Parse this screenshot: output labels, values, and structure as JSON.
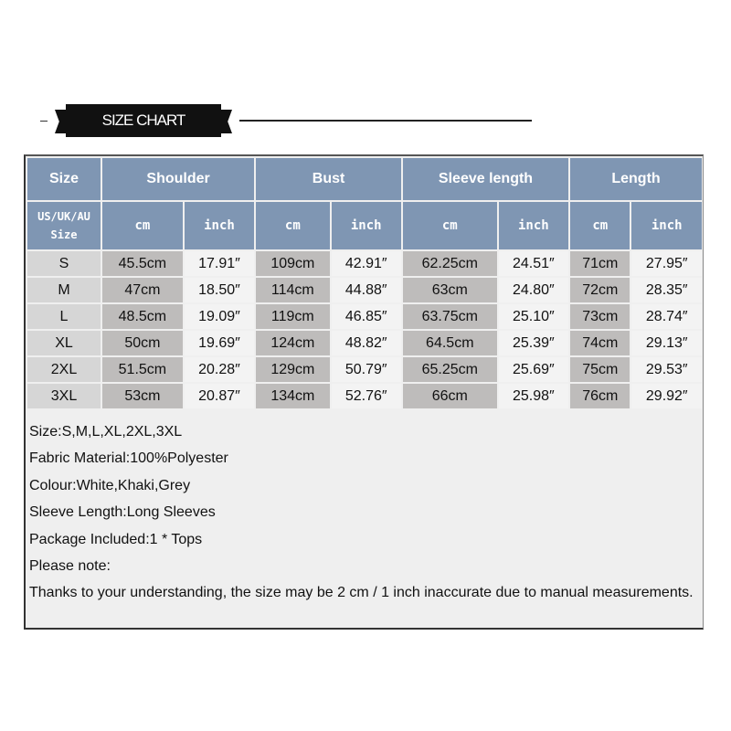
{
  "banner": {
    "title": "SIZE CHART"
  },
  "table": {
    "headers": [
      "Size",
      "Shoulder",
      "Bust",
      "Sleeve length",
      "Length"
    ],
    "subheaders": {
      "size": "US/UK/AU Size",
      "cm": "cm",
      "inch": "inch"
    },
    "rows": [
      [
        "S",
        "45.5cm",
        "17.91″",
        "109cm",
        "42.91″",
        "62.25cm",
        "24.51″",
        "71cm",
        "27.95″"
      ],
      [
        "M",
        "47cm",
        "18.50″",
        "114cm",
        "44.88″",
        "63cm",
        "24.80″",
        "72cm",
        "28.35″"
      ],
      [
        "L",
        "48.5cm",
        "19.09″",
        "119cm",
        "46.85″",
        "63.75cm",
        "25.10″",
        "73cm",
        "28.74″"
      ],
      [
        "XL",
        "50cm",
        "19.69″",
        "124cm",
        "48.82″",
        "64.5cm",
        "25.39″",
        "74cm",
        "29.13″"
      ],
      [
        "2XL",
        "51.5cm",
        "20.28″",
        "129cm",
        "50.79″",
        "65.25cm",
        "25.69″",
        "75cm",
        "29.53″"
      ],
      [
        "3XL",
        "53cm",
        "20.87″",
        "134cm",
        "52.76″",
        "66cm",
        "25.98″",
        "76cm",
        "29.92″"
      ]
    ]
  },
  "notes": [
    "Size:S,M,L,XL,2XL,3XL",
    "Fabric Material:100%Polyester",
    "Colour:White,Khaki,Grey",
    "Sleeve Length:Long Sleeves",
    "Package Included:1 * Tops",
    "Please note:",
    "Thanks to your understanding, the size may be 2 cm / 1 inch inaccurate due to manual measurements."
  ],
  "colors": {
    "header": "#7f96b3",
    "size_col": "#d6d6d6",
    "cm_col": "#bebcbb",
    "inch_col": "#f3f3f3"
  }
}
